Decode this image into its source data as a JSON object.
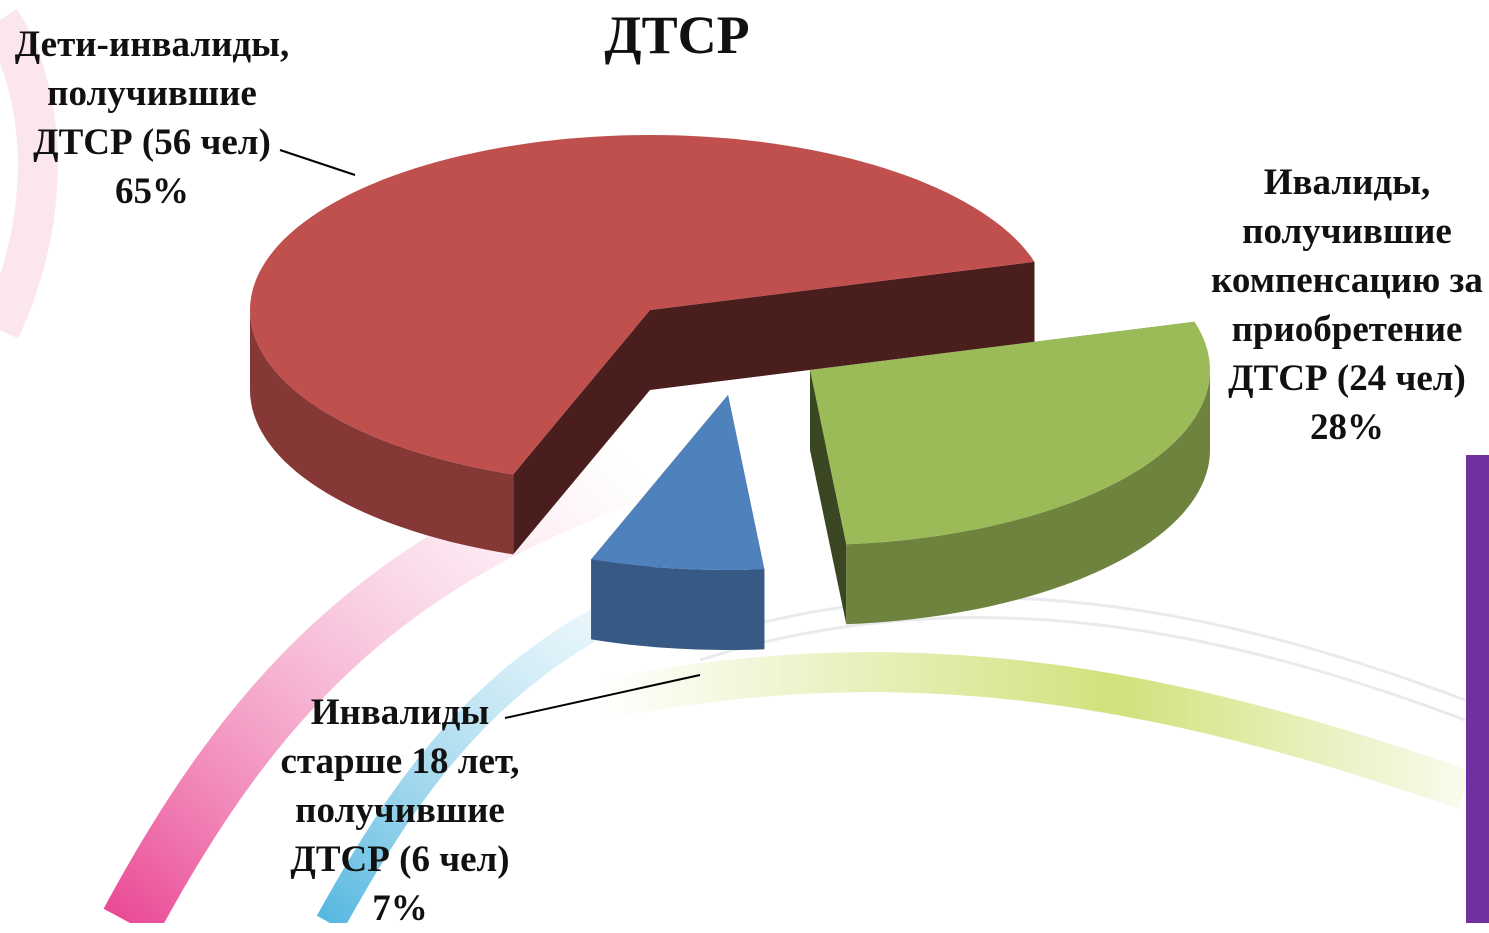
{
  "chart_data": {
    "type": "pie3d",
    "title": "ДТСР",
    "categories": [
      "Дети-инвалиды, получившие ДТСР (56 чел)",
      "Ивалиды, получившие компенсацию за приобретение ДТСР (24 чел)",
      "Инвалиды старше 18 лет, получившие ДТСР (6 чел)"
    ],
    "values": [
      65,
      28,
      7
    ],
    "value_labels": [
      "65%",
      "28%",
      "7%"
    ],
    "colors": [
      "#c0504d",
      "#9bbb59",
      "#4f81bd"
    ]
  }
}
